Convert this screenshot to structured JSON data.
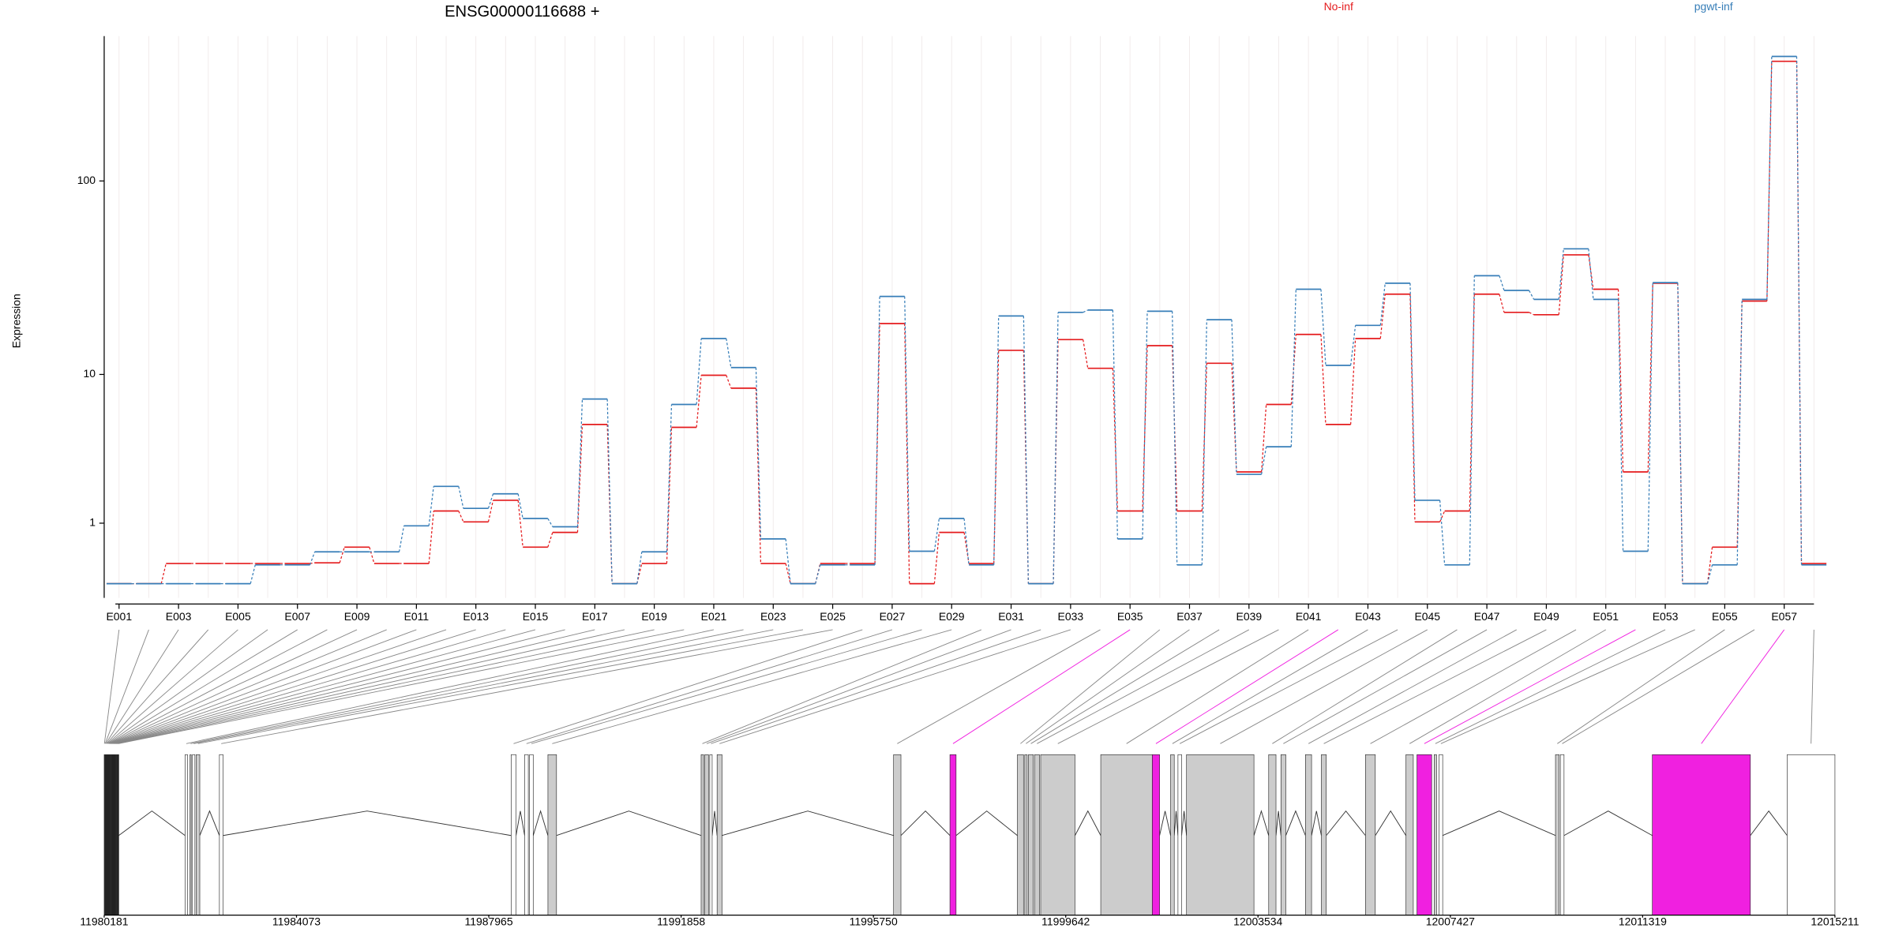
{
  "chart_data": [
    {
      "type": "line",
      "title": "ENSG00000116688 +",
      "ylabel": "Expression",
      "yscale": "log1p",
      "grid": true,
      "categories": [
        "E001",
        null,
        "E003",
        null,
        "E005",
        null,
        "E007",
        null,
        "E009",
        null,
        "E011",
        null,
        "E013",
        null,
        "E015",
        null,
        "E017",
        null,
        "E019",
        null,
        "E021",
        null,
        "E023",
        null,
        "E025",
        null,
        "E027",
        null,
        "E029",
        null,
        "E031",
        null,
        "E033",
        null,
        "E035",
        null,
        "E037",
        null,
        "E039",
        null,
        "E041",
        null,
        "E043",
        null,
        "E045",
        null,
        "E047",
        null,
        "E049",
        null,
        "E051",
        null,
        "E053",
        null,
        "E055",
        null,
        "E057",
        null
      ],
      "series": [
        {
          "name": "No-inf",
          "color": "#e41a1c",
          "values": [
            0,
            0,
            0.26,
            0.26,
            0.26,
            0.26,
            0.26,
            0.27,
            0.52,
            0.26,
            0.26,
            1.3,
            1.03,
            1.6,
            0.52,
            0.8,
            5.2,
            0,
            0.26,
            5.0,
            9.9,
            8.4,
            0.26,
            0,
            0.26,
            0.26,
            18.7,
            0,
            0.8,
            0.26,
            13.5,
            0,
            15.4,
            10.8,
            1.3,
            14.3,
            1.3,
            11.5,
            2.6,
            6.8,
            16.4,
            5.2,
            15.6,
            26.6,
            1.03,
            1.3,
            26.6,
            21.4,
            20.8,
            42.3,
            28.2,
            2.6,
            30.3,
            0,
            0.52,
            24.5,
            397,
            0.26
          ]
        },
        {
          "name": "pgwt-inf",
          "color": "#377eb8",
          "values": [
            0,
            0,
            0,
            0,
            0,
            0.24,
            0.24,
            0.44,
            0.44,
            0.44,
            0.94,
            2.05,
            1.37,
            1.8,
            1.11,
            0.92,
            7.3,
            0,
            0.44,
            6.8,
            15.6,
            10.9,
            0.67,
            0,
            0.24,
            0.24,
            25.9,
            0.45,
            1.11,
            0.24,
            20.5,
            0,
            21.4,
            22,
            0.67,
            21.7,
            0.24,
            19.6,
            2.5,
            3.8,
            28.2,
            11.2,
            18.3,
            30.3,
            1.6,
            0.24,
            33.1,
            27.8,
            25,
            45.4,
            25,
            0.45,
            30.5,
            0,
            0.24,
            25,
            420,
            0.24
          ]
        }
      ],
      "ylim": [
        -0.15,
        530
      ],
      "yticks": [
        1,
        10,
        100
      ]
    },
    {
      "type": "gene-model",
      "xlim": [
        11980181,
        12015211
      ],
      "highlight": "#f020e0",
      "xticks": [
        11980181,
        11984073,
        11987965,
        11991858,
        11995750,
        11999642,
        12003534,
        12007427,
        12011319,
        12015211
      ],
      "exons": [
        {
          "start": 11980181,
          "end": 11980190,
          "fill": "#ffffff"
        },
        {
          "start": 11980196,
          "end": 11980205,
          "fill": "#ffffff"
        },
        {
          "start": 11980211,
          "end": 11980220,
          "fill": "#ffffff"
        },
        {
          "start": 11980226,
          "end": 11980235,
          "fill": "#ffffff"
        },
        {
          "start": 11980241,
          "end": 11980250,
          "fill": "#ffffff"
        },
        {
          "start": 11980256,
          "end": 11980265,
          "fill": "#ffffff"
        },
        {
          "start": 11980271,
          "end": 11980280,
          "fill": "#ffffff"
        },
        {
          "start": 11980286,
          "end": 11980295,
          "fill": "#ffffff"
        },
        {
          "start": 11980301,
          "end": 11980310,
          "fill": "#ffffff"
        },
        {
          "start": 11980316,
          "end": 11980325,
          "fill": "#ffffff"
        },
        {
          "start": 11980331,
          "end": 11980340,
          "fill": "#ffffff"
        },
        {
          "start": 11980346,
          "end": 11980355,
          "fill": "#ffffff"
        },
        {
          "start": 11980361,
          "end": 11980370,
          "fill": "#ffffff"
        },
        {
          "start": 11980376,
          "end": 11980385,
          "fill": "#ffffff"
        },
        {
          "start": 11980391,
          "end": 11980400,
          "fill": "#ffffff"
        },
        {
          "start": 11980406,
          "end": 11980415,
          "fill": "#ffffff"
        },
        {
          "start": 11980421,
          "end": 11980430,
          "fill": "#ffffff"
        },
        {
          "start": 11980436,
          "end": 11980445,
          "fill": "#ffffff"
        },
        {
          "start": 11980451,
          "end": 11980460,
          "fill": "#ffffff"
        },
        {
          "start": 11980466,
          "end": 11980475,
          "fill": "#ffffff"
        },
        {
          "start": 11981818,
          "end": 11981868,
          "fill": "#ffffff"
        },
        {
          "start": 11981918,
          "end": 11981942,
          "fill": "#cccccc"
        },
        {
          "start": 11981967,
          "end": 11982017,
          "fill": "#ffffff"
        },
        {
          "start": 11982042,
          "end": 11982116,
          "fill": "#cccccc"
        },
        {
          "start": 11982513,
          "end": 11982587,
          "fill": "#ffffff"
        },
        {
          "start": 11988418,
          "end": 11988517,
          "fill": "#ffffff"
        },
        {
          "start": 11988691,
          "end": 11988765,
          "fill": "#ffffff"
        },
        {
          "start": 11988790,
          "end": 11988864,
          "fill": "#ffffff"
        },
        {
          "start": 11989162,
          "end": 11989336,
          "fill": "#cccccc"
        },
        {
          "start": 11992263,
          "end": 11992313,
          "fill": "#cccccc"
        },
        {
          "start": 11992337,
          "end": 11992412,
          "fill": "#cccccc"
        },
        {
          "start": 11992437,
          "end": 11992486,
          "fill": "#ffffff"
        },
        {
          "start": 11992586,
          "end": 11992685,
          "fill": "#cccccc"
        },
        {
          "start": 11996158,
          "end": 11996307,
          "fill": "#cccccc"
        },
        {
          "start": 11997299,
          "end": 11997423,
          "fill": "#f020e0"
        },
        {
          "start": 11998664,
          "end": 11998788,
          "fill": "#cccccc"
        },
        {
          "start": 11998813,
          "end": 11998862,
          "fill": "#cccccc"
        },
        {
          "start": 11998887,
          "end": 11998986,
          "fill": "#cccccc"
        },
        {
          "start": 11999011,
          "end": 11999110,
          "fill": "#cccccc"
        },
        {
          "start": 11999135,
          "end": 11999830,
          "fill": "#cccccc"
        },
        {
          "start": 12000351,
          "end": 12001393,
          "fill": "#cccccc"
        },
        {
          "start": 12001394,
          "end": 12001542,
          "fill": "#f020e0"
        },
        {
          "start": 12001765,
          "end": 12001839,
          "fill": "#cccccc"
        },
        {
          "start": 12001914,
          "end": 12001988,
          "fill": "#ffffff"
        },
        {
          "start": 12002087,
          "end": 12003452,
          "fill": "#cccccc"
        },
        {
          "start": 12003750,
          "end": 12003898,
          "fill": "#cccccc"
        },
        {
          "start": 12003998,
          "end": 12004097,
          "fill": "#cccccc"
        },
        {
          "start": 12004494,
          "end": 12004618,
          "fill": "#cccccc"
        },
        {
          "start": 12004816,
          "end": 12004916,
          "fill": "#cccccc"
        },
        {
          "start": 12005709,
          "end": 12005908,
          "fill": "#cccccc"
        },
        {
          "start": 12006528,
          "end": 12006677,
          "fill": "#cccccc"
        },
        {
          "start": 12006751,
          "end": 12007049,
          "fill": "#f020e0"
        },
        {
          "start": 12007099,
          "end": 12007148,
          "fill": "#cccccc"
        },
        {
          "start": 12007198,
          "end": 12007272,
          "fill": "#ffffff"
        },
        {
          "start": 12009555,
          "end": 12009629,
          "fill": "#cccccc"
        },
        {
          "start": 12009654,
          "end": 12009728,
          "fill": "#ffffff"
        },
        {
          "start": 12011515,
          "end": 12013499,
          "fill": "#f020e0"
        },
        {
          "start": 12014244,
          "end": 12015211,
          "fill": "#ffffff"
        }
      ]
    }
  ]
}
